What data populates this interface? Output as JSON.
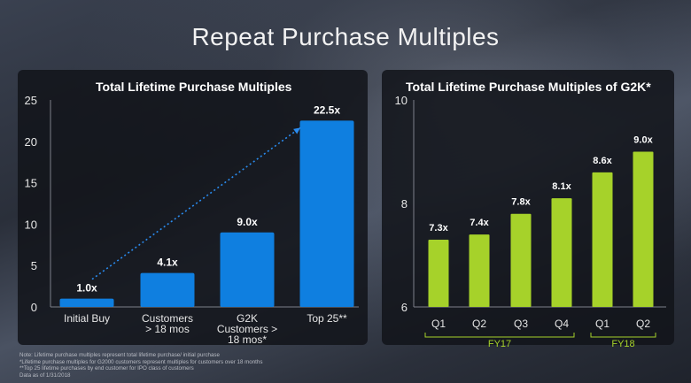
{
  "slide_title": "Repeat Purchase Multiples",
  "colors": {
    "left_bars": "#0f7fe0",
    "right_bars": "#a6d22a",
    "panel_bg": "#14161b"
  },
  "chart_data": [
    {
      "type": "bar",
      "title": "Total Lifetime Purchase Multiples",
      "categories": [
        "Initial Buy",
        "Customers > 18 mos",
        "G2K Customers > 18 mos*",
        "Top 25**"
      ],
      "category_lines": [
        [
          "Initial Buy"
        ],
        [
          "Customers",
          "> 18 mos"
        ],
        [
          "G2K",
          "Customers >",
          "18 mos*"
        ],
        [
          "Top 25**"
        ]
      ],
      "values": [
        1.0,
        4.1,
        9.0,
        22.5
      ],
      "data_labels": [
        "1.0x",
        "4.1x",
        "9.0x",
        "22.5x"
      ],
      "ylim": [
        0,
        25
      ],
      "yticks": [
        "0",
        "5",
        "10",
        "15",
        "20",
        "25"
      ],
      "annotations": [
        "dotted trend arrow from Initial Buy to Top 25**"
      ],
      "color": "#0f7fe0"
    },
    {
      "type": "bar",
      "title": "Total Lifetime Purchase Multiples of G2K*",
      "categories": [
        "Q1",
        "Q2",
        "Q3",
        "Q4",
        "Q1",
        "Q2"
      ],
      "groups": [
        {
          "label": "FY17",
          "categories": [
            "Q1",
            "Q2",
            "Q3",
            "Q4"
          ]
        },
        {
          "label": "FY18",
          "categories": [
            "Q1",
            "Q2"
          ]
        }
      ],
      "values": [
        7.3,
        7.4,
        7.8,
        8.1,
        8.6,
        9.0
      ],
      "data_labels": [
        "7.3x",
        "7.4x",
        "7.8x",
        "8.1x",
        "8.6x",
        "9.0x"
      ],
      "ylim": [
        6,
        10
      ],
      "yticks": [
        "6",
        "8",
        "10"
      ],
      "color": "#a6d22a"
    }
  ],
  "footnotes": [
    "Note: Lifetime purchase multiples represent total lifetime purchase/ initial purchase",
    "*Lifetime purchase multiples for G2000 customers represent multiples for customers over 18 months",
    "**Top 25 lifetime purchases by end customer for IPO class of customers",
    "Data as of 1/31/2018"
  ]
}
